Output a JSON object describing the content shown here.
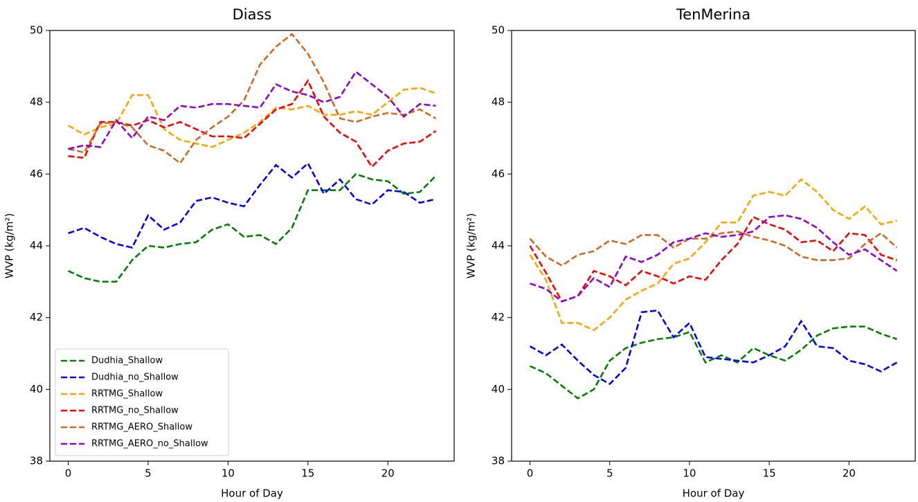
{
  "chart_data": [
    {
      "type": "line",
      "title": "Diass",
      "x_label": "Hour of Day",
      "y_label": "WVP (kg/m²)",
      "x": [
        0,
        1,
        2,
        3,
        4,
        5,
        6,
        7,
        8,
        9,
        10,
        11,
        12,
        13,
        14,
        15,
        16,
        17,
        18,
        19,
        20,
        21,
        22,
        23
      ],
      "xlim": [
        -1.15,
        24.15
      ],
      "ylim": [
        38,
        50
      ],
      "xticks": [
        0,
        5,
        10,
        15,
        20
      ],
      "yticks": [
        38,
        40,
        42,
        44,
        46,
        48,
        50
      ],
      "legend": "lower left",
      "series": [
        {
          "name": "Dudhia_Shallow",
          "color": "#008000",
          "values": [
            43.3,
            43.1,
            43.0,
            43.0,
            43.6,
            44.0,
            43.95,
            44.05,
            44.1,
            44.45,
            44.6,
            44.25,
            44.3,
            44.05,
            44.5,
            45.55,
            45.55,
            45.55,
            46.0,
            45.85,
            45.8,
            45.45,
            45.5,
            45.95
          ]
        },
        {
          "name": "Dudhia_no_Shallow",
          "color": "#0000ff",
          "values": [
            44.35,
            44.5,
            44.25,
            44.05,
            43.95,
            44.85,
            44.45,
            44.65,
            45.25,
            45.35,
            45.2,
            45.1,
            45.7,
            46.25,
            45.9,
            46.3,
            45.45,
            45.85,
            45.3,
            45.15,
            45.55,
            45.5,
            45.2,
            45.3
          ]
        },
        {
          "name": "RRTMG_Shallow",
          "color": "#ffa500",
          "values": [
            47.35,
            47.1,
            47.3,
            47.4,
            48.2,
            48.2,
            47.25,
            46.95,
            46.85,
            46.75,
            46.95,
            47.15,
            47.45,
            47.85,
            47.8,
            47.9,
            47.65,
            47.65,
            47.75,
            47.65,
            48.0,
            48.35,
            48.4,
            48.25
          ]
        },
        {
          "name": "RRTMG_no_Shallow",
          "color": "#ff0000",
          "values": [
            46.5,
            46.45,
            47.45,
            47.45,
            47.35,
            47.5,
            47.3,
            47.45,
            47.25,
            47.05,
            47.05,
            47.0,
            47.4,
            47.8,
            47.95,
            48.6,
            47.6,
            47.15,
            46.9,
            46.2,
            46.65,
            46.85,
            46.9,
            47.2
          ]
        },
        {
          "name": "RRTMG_AERO_Shallow",
          "color": "#d2691e",
          "values": [
            46.7,
            46.6,
            47.4,
            47.45,
            47.3,
            46.8,
            46.65,
            46.3,
            46.95,
            47.3,
            47.6,
            48.05,
            49.05,
            49.55,
            49.9,
            49.35,
            48.55,
            47.55,
            47.45,
            47.6,
            47.7,
            47.65,
            47.8,
            47.55
          ]
        },
        {
          "name": "RRTMG_AERO_no_Shallow",
          "color": "#9400d3",
          "values": [
            46.7,
            46.8,
            46.75,
            47.5,
            47.0,
            47.6,
            47.5,
            47.9,
            47.85,
            47.95,
            47.95,
            47.9,
            47.85,
            48.5,
            48.3,
            48.2,
            48.0,
            48.15,
            48.85,
            48.5,
            48.15,
            47.6,
            47.95,
            47.9
          ]
        }
      ]
    },
    {
      "type": "line",
      "title": "TenMerina",
      "x_label": "Hour of Day",
      "y_label": "WVP (kg/m²)",
      "x": [
        0,
        1,
        2,
        3,
        4,
        5,
        6,
        7,
        8,
        9,
        10,
        11,
        12,
        13,
        14,
        15,
        16,
        17,
        18,
        19,
        20,
        21,
        22,
        23
      ],
      "xlim": [
        -1.15,
        24.15
      ],
      "ylim": [
        38,
        50
      ],
      "xticks": [
        0,
        5,
        10,
        15,
        20
      ],
      "yticks": [
        38,
        40,
        42,
        44,
        46,
        48,
        50
      ],
      "series": [
        {
          "name": "Dudhia_Shallow",
          "color": "#008000",
          "values": [
            40.65,
            40.45,
            40.1,
            39.75,
            40.0,
            40.8,
            41.15,
            41.3,
            41.4,
            41.45,
            41.6,
            40.75,
            40.95,
            40.75,
            41.15,
            40.95,
            40.8,
            41.1,
            41.5,
            41.7,
            41.75,
            41.75,
            41.55,
            41.4
          ]
        },
        {
          "name": "Dudhia_no_Shallow",
          "color": "#0000ff",
          "values": [
            41.2,
            40.95,
            41.25,
            40.8,
            40.4,
            40.15,
            40.6,
            42.15,
            42.2,
            41.45,
            41.85,
            40.9,
            40.85,
            40.8,
            40.75,
            40.95,
            41.2,
            41.9,
            41.2,
            41.15,
            40.8,
            40.7,
            40.5,
            40.75
          ]
        },
        {
          "name": "RRTMG_Shallow",
          "color": "#ffa500",
          "values": [
            43.75,
            43.05,
            41.85,
            41.85,
            41.65,
            42.0,
            42.5,
            42.75,
            42.95,
            43.5,
            43.65,
            44.1,
            44.65,
            44.65,
            45.4,
            45.5,
            45.4,
            45.85,
            45.5,
            45.0,
            44.75,
            45.1,
            44.6,
            44.7
          ]
        },
        {
          "name": "RRTMG_no_Shallow",
          "color": "#ff0000",
          "values": [
            44.0,
            43.25,
            42.45,
            42.6,
            43.3,
            43.15,
            42.9,
            43.3,
            43.15,
            42.95,
            43.15,
            43.05,
            43.6,
            44.05,
            44.8,
            44.6,
            44.45,
            44.1,
            44.15,
            43.85,
            44.35,
            44.3,
            43.75,
            43.6
          ]
        },
        {
          "name": "RRTMG_AERO_Shallow",
          "color": "#d2691e",
          "values": [
            44.2,
            43.7,
            43.45,
            43.75,
            43.85,
            44.15,
            44.05,
            44.3,
            44.3,
            43.95,
            44.2,
            44.2,
            44.35,
            44.4,
            44.25,
            44.15,
            44.0,
            43.7,
            43.6,
            43.6,
            43.65,
            44.05,
            44.35,
            43.95
          ]
        },
        {
          "name": "RRTMG_AERO_no_Shallow",
          "color": "#9400d3",
          "values": [
            42.95,
            42.8,
            42.45,
            42.6,
            43.1,
            42.85,
            43.7,
            43.55,
            43.75,
            44.1,
            44.2,
            44.35,
            44.25,
            44.3,
            44.4,
            44.8,
            44.85,
            44.75,
            44.5,
            44.1,
            43.75,
            43.9,
            43.6,
            43.3
          ]
        }
      ]
    }
  ]
}
